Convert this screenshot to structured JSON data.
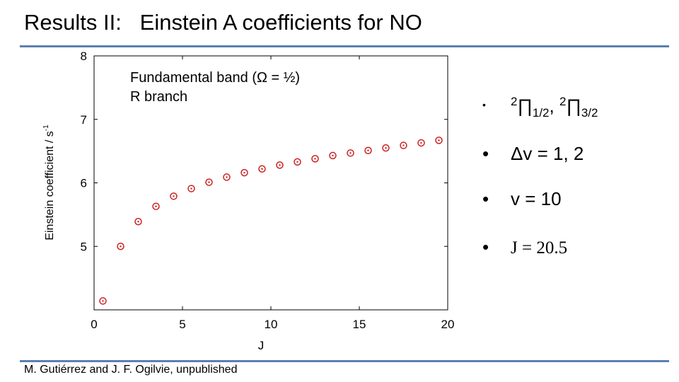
{
  "slide": {
    "title": "Results II:   Einstein A coefficients for NO",
    "footer": "M. Gutiérrez and J. F. Ogilvie, unpublished",
    "colors": {
      "rule": "#5b80b2",
      "marker": "#cc2222"
    }
  },
  "bullets": [
    {
      "marker": "•",
      "parts": {
        "sup1": "2",
        "sym1": "∏",
        "sub1": "1/2",
        "sep": ", ",
        "sup2": "2",
        "sym2": "∏",
        "sub2": "3/2"
      }
    },
    {
      "marker": "•",
      "text": "Δv = 1, 2"
    },
    {
      "marker": "•",
      "text": "v = 10"
    },
    {
      "marker": "•",
      "text": "J = 20.5"
    }
  ],
  "chart_data": {
    "type": "scatter",
    "title": "",
    "annotation": [
      "Fundamental band (Ω = ½)",
      "R branch"
    ],
    "xlabel": "J",
    "ylabel": "Einstein coefficient / s",
    "ylabel_sup": "-1",
    "xlim": [
      0,
      20
    ],
    "ylim": [
      4,
      8
    ],
    "xticks": [
      0,
      5,
      10,
      15,
      20
    ],
    "yticks": [
      5,
      6,
      7,
      8
    ],
    "grid": false,
    "marker": "open circle with center dot",
    "x": [
      0.5,
      1.5,
      2.5,
      3.5,
      4.5,
      5.5,
      6.5,
      7.5,
      8.5,
      9.5,
      10.5,
      11.5,
      12.5,
      13.5,
      14.5,
      15.5,
      16.5,
      17.5,
      18.5,
      19.5
    ],
    "y": [
      4.14,
      5.0,
      5.39,
      5.63,
      5.79,
      5.91,
      6.01,
      6.09,
      6.16,
      6.22,
      6.28,
      6.33,
      6.38,
      6.43,
      6.47,
      6.51,
      6.55,
      6.59,
      6.63,
      6.67
    ]
  }
}
